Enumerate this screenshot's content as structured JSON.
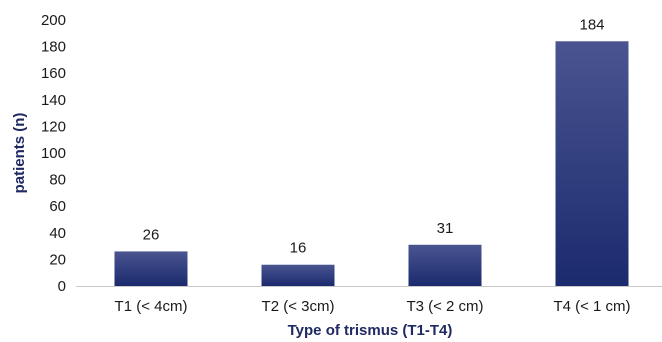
{
  "chart_data": {
    "type": "bar",
    "categories": [
      "T1 (< 4cm)",
      "T2 (< 3cm)",
      "T3 (< 2 cm)",
      "T4 (< 1 cm)"
    ],
    "values": [
      26,
      16,
      31,
      184
    ],
    "data_labels": [
      "26",
      "16",
      "31",
      "184"
    ],
    "xlabel": "Type of trismus (T1-T4)",
    "ylabel": "patients (n)",
    "ylim": [
      0,
      200
    ],
    "yticks": [
      0,
      20,
      40,
      60,
      80,
      100,
      120,
      140,
      160,
      180,
      200
    ],
    "grid": false,
    "legend": "none",
    "colors": {
      "bar_top": "#4a5590",
      "bar_bottom": "#1b2a6e",
      "axis": "#c8c8c8",
      "title": "#1f2a63"
    }
  }
}
